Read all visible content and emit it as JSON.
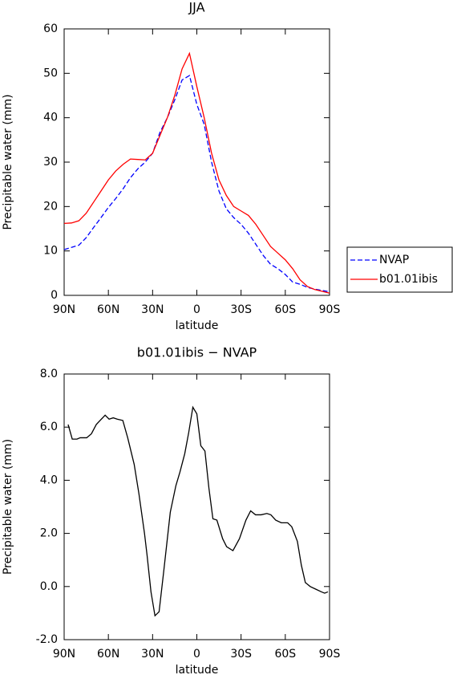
{
  "chart_data": [
    {
      "type": "line",
      "title": "JJA",
      "x_label": "latitude",
      "y_label": "Precipitable water (mm)",
      "x": [
        90,
        85,
        80,
        75,
        70,
        65,
        60,
        55,
        50,
        45,
        40,
        35,
        30,
        25,
        20,
        15,
        10,
        5,
        0,
        -5,
        -10,
        -15,
        -20,
        -25,
        -30,
        -35,
        -40,
        -45,
        -50,
        -55,
        -60,
        -65,
        -70,
        -75,
        -80,
        -85,
        -90
      ],
      "series": [
        {
          "name": "NVAP",
          "color": "#0000ff",
          "dash": true,
          "values": [
            10.3,
            10.8,
            11.3,
            13,
            15.3,
            17.5,
            19.8,
            21.8,
            24,
            26.5,
            28.5,
            30,
            32,
            36.7,
            40,
            44,
            48.5,
            49.5,
            43,
            38.5,
            30,
            23.5,
            19.5,
            17.5,
            16,
            14,
            11.5,
            9,
            7,
            6,
            4.7,
            3,
            2.5,
            1.8,
            1.4,
            1.1,
            0.8
          ]
        },
        {
          "name": "b01.01ibis",
          "color": "#ff0000",
          "dash": false,
          "values": [
            16.2,
            16.3,
            16.8,
            18.5,
            21,
            23.5,
            26,
            28,
            29.5,
            30.7,
            30.6,
            30.5,
            32,
            36,
            40,
            45,
            51,
            54.5,
            47,
            40,
            32,
            26,
            22.5,
            20,
            19,
            18,
            16,
            13.5,
            11,
            9.5,
            8,
            6,
            3.5,
            2,
            1.3,
            0.9,
            0.5
          ]
        }
      ],
      "xlim": [
        90,
        -90
      ],
      "xticks": [
        {
          "value": 90,
          "label": "90N"
        },
        {
          "value": 60,
          "label": "60N"
        },
        {
          "value": 30,
          "label": "30N"
        },
        0,
        {
          "value": -30,
          "label": "30S"
        },
        {
          "value": -60,
          "label": "60S"
        },
        {
          "value": -90,
          "label": "90S"
        }
      ],
      "ylim": [
        0,
        60
      ],
      "yticks": [
        0,
        10,
        20,
        30,
        40,
        50,
        60
      ],
      "legend": "right"
    },
    {
      "type": "line",
      "title": "b01.01ibis − NVAP",
      "x_label": "latitude",
      "y_label": "Precipitable water (mm)",
      "x": [
        87.3,
        84.5,
        81.3,
        79.1,
        74.7,
        71.5,
        68.2,
        62.2,
        59.5,
        56.7,
        54,
        50.2,
        46.9,
        42.5,
        39.3,
        35.5,
        33.8,
        31.1,
        28.4,
        25.6,
        22.4,
        18,
        14.2,
        11.5,
        8.2,
        5.5,
        2.7,
        0,
        -2.7,
        -5.5,
        -8.2,
        -10.9,
        -13.6,
        -17.5,
        -20.2,
        -24.5,
        -28.9,
        -33.3,
        -36.5,
        -39.8,
        -43.6,
        -47.5,
        -50.2,
        -53.5,
        -57.3,
        -61.6,
        -64.4,
        -68.2,
        -70.9,
        -73.6,
        -76.9,
        -80.7,
        -84.5,
        -86.7,
        -88.9
      ],
      "series": [
        {
          "name": null,
          "color": "#000000",
          "dash": false,
          "values": [
            6.1,
            5.55,
            5.55,
            5.6,
            5.6,
            5.75,
            6.1,
            6.45,
            6.3,
            6.35,
            6.3,
            6.25,
            5.6,
            4.6,
            3.5,
            2.0,
            1.2,
            -0.2,
            -1.1,
            -0.95,
            0.6,
            2.8,
            3.8,
            4.3,
            5.0,
            5.8,
            6.75,
            6.5,
            5.3,
            5.1,
            3.7,
            2.55,
            2.5,
            1.8,
            1.5,
            1.35,
            1.8,
            2.5,
            2.85,
            2.7,
            2.7,
            2.75,
            2.7,
            2.5,
            2.4,
            2.4,
            2.25,
            1.7,
            0.8,
            0.15,
            0.0,
            -0.1,
            -0.2,
            -0.25,
            -0.2
          ]
        }
      ],
      "xlim": [
        90,
        -90
      ],
      "xticks": [
        {
          "value": 90,
          "label": "90N"
        },
        {
          "value": 60,
          "label": "60N"
        },
        {
          "value": 30,
          "label": "30N"
        },
        0,
        {
          "value": -30,
          "label": "30S"
        },
        {
          "value": -60,
          "label": "60S"
        },
        {
          "value": -90,
          "label": "90S"
        }
      ],
      "ylim": [
        -2,
        8
      ],
      "yticks": [
        {
          "value": -2,
          "label": "-2.0"
        },
        {
          "value": 0,
          "label": "0.0"
        },
        {
          "value": 2,
          "label": "2.0"
        },
        {
          "value": 4,
          "label": "4.0"
        },
        {
          "value": 6,
          "label": "6.0"
        },
        {
          "value": 8,
          "label": "8.0"
        }
      ]
    }
  ]
}
